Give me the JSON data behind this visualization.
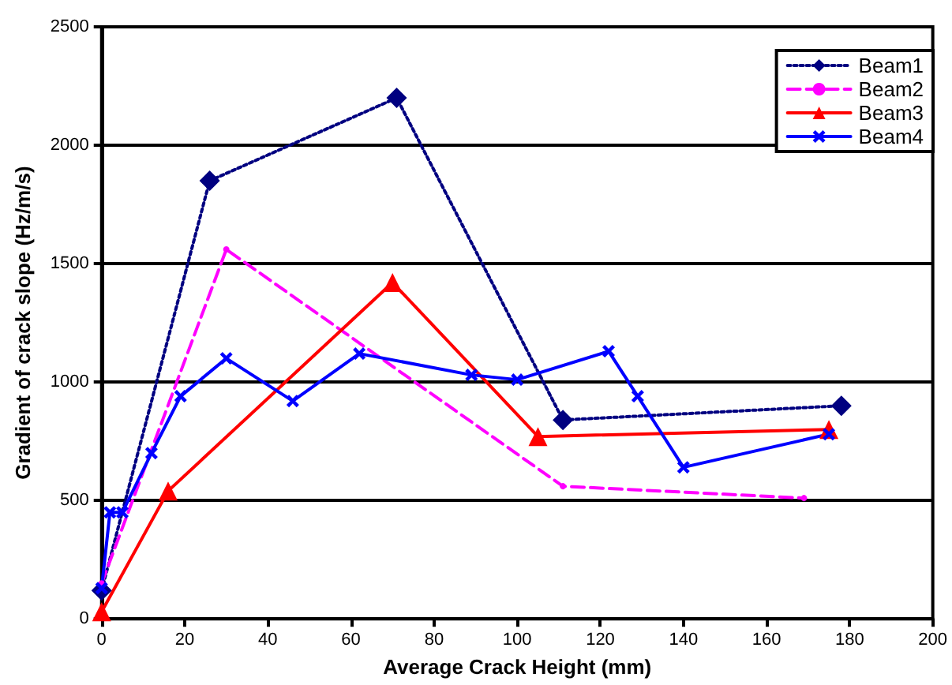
{
  "chart_data": {
    "type": "line",
    "xlabel": "Average Crack Height (mm)",
    "ylabel": "Gradient of crack slope (Hz/m/s)",
    "xlim": [
      0,
      200
    ],
    "xticks": [
      0,
      20,
      40,
      60,
      80,
      100,
      120,
      140,
      160,
      180,
      200
    ],
    "ylim": [
      0,
      2500
    ],
    "yticks": [
      0,
      500,
      1000,
      1500,
      2000,
      2500
    ],
    "grid": "y",
    "legend": "top right",
    "series": [
      {
        "name": "Beam1",
        "color": "#000080",
        "marker": "diamond",
        "line_style": "dotted",
        "x": [
          0,
          26,
          71,
          111,
          178
        ],
        "values": [
          120,
          1850,
          2200,
          840,
          900
        ]
      },
      {
        "name": "Beam2",
        "color": "#ff00ff",
        "marker": "circle",
        "line_style": "dashed",
        "x": [
          0,
          30,
          111,
          169
        ],
        "values": [
          150,
          1560,
          560,
          510
        ]
      },
      {
        "name": "Beam3",
        "color": "#ff0000",
        "marker": "triangle",
        "line_style": "solid",
        "x": [
          0,
          16,
          70,
          105,
          175
        ],
        "values": [
          30,
          540,
          1420,
          770,
          800
        ]
      },
      {
        "name": "Beam4",
        "color": "#0000ff",
        "marker": "cross",
        "line_style": "solid",
        "x": [
          0,
          2,
          5,
          12,
          19,
          30,
          46,
          62,
          89,
          100,
          122,
          129,
          140,
          175
        ],
        "values": [
          130,
          450,
          450,
          700,
          940,
          1100,
          920,
          1120,
          1030,
          1010,
          1130,
          940,
          640,
          780
        ]
      }
    ]
  }
}
